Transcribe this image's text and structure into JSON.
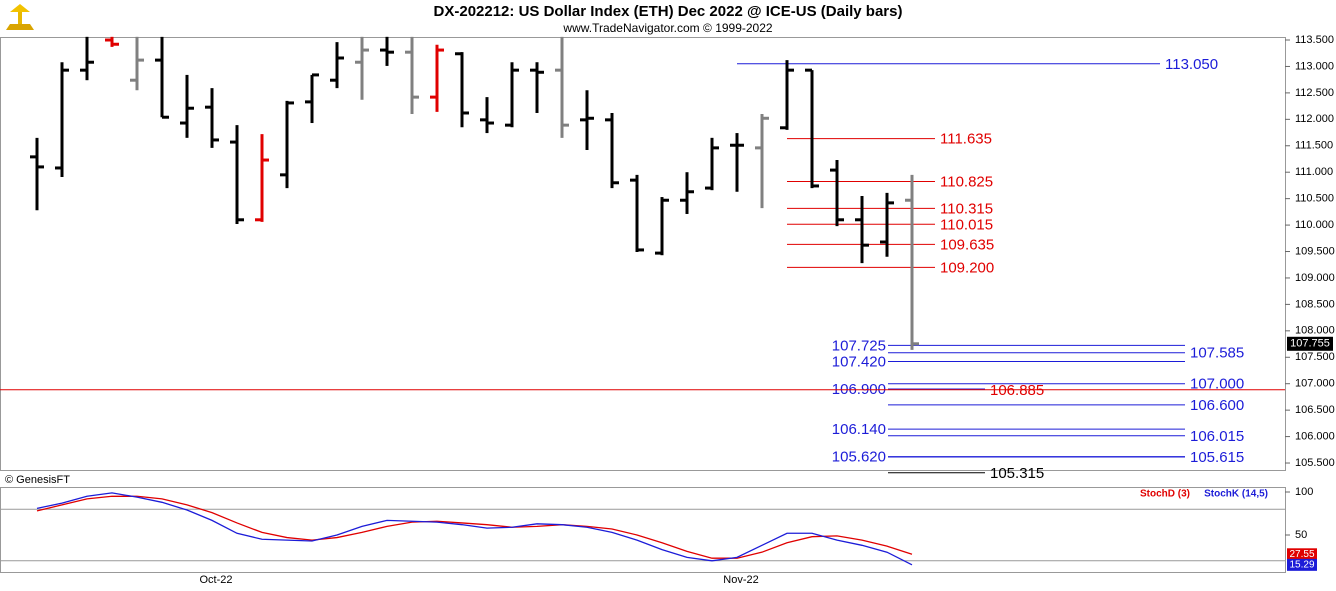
{
  "chart_data": [
    {
      "type": "ohlc",
      "title": "DX-202212:  US Dollar Index (ETH) Dec 2022 @ ICE-US  (Daily bars)",
      "subtitle": "www.TradeNavigator.com © 1999-2022",
      "source": "© GenesisFT",
      "categories": [
        null,
        null,
        null,
        null,
        null,
        null,
        null,
        "Oct-22",
        null,
        null,
        null,
        null,
        null,
        null,
        null,
        null,
        null,
        null,
        null,
        null,
        null,
        null,
        null,
        null,
        null,
        null,
        null,
        null,
        "Nov-22",
        null,
        null,
        null,
        null,
        null,
        null,
        null
      ],
      "open": [
        111.29,
        111.08,
        112.93,
        113.5,
        112.74,
        113.12,
        111.93,
        112.23,
        111.57,
        110.1,
        110.95,
        112.33,
        112.74,
        113.08,
        113.31,
        113.27,
        112.42,
        113.24,
        111.99,
        111.89,
        112.93,
        112.93,
        111.99,
        111.99,
        110.85,
        109.47,
        110.47,
        110.7,
        111.51,
        111.46,
        111.84,
        112.93,
        111.04,
        110.1,
        109.68,
        110.47
      ],
      "high": [
        111.65,
        113.08,
        113.56,
        113.56,
        113.56,
        113.56,
        112.84,
        112.59,
        111.89,
        111.72,
        112.35,
        112.84,
        113.46,
        113.56,
        113.56,
        113.56,
        113.41,
        113.27,
        112.42,
        113.08,
        113.08,
        113.56,
        112.55,
        112.12,
        110.95,
        110.53,
        111.0,
        111.65,
        111.74,
        112.1,
        113.12,
        112.93,
        111.23,
        110.55,
        110.61,
        110.95
      ],
      "low": [
        110.28,
        110.91,
        112.74,
        113.37,
        112.55,
        112.04,
        111.65,
        111.46,
        110.02,
        110.06,
        110.7,
        111.93,
        112.59,
        112.37,
        113.01,
        112.1,
        112.14,
        111.85,
        111.74,
        111.85,
        112.12,
        111.65,
        111.42,
        110.7,
        109.49,
        109.43,
        110.21,
        110.66,
        110.63,
        110.32,
        111.8,
        110.7,
        109.98,
        109.28,
        109.4,
        107.64
      ],
      "close": [
        111.1,
        112.93,
        113.08,
        113.42,
        113.12,
        112.04,
        112.21,
        111.61,
        110.1,
        111.23,
        112.31,
        112.84,
        113.16,
        113.31,
        113.27,
        112.42,
        113.31,
        112.12,
        111.93,
        112.93,
        112.89,
        111.89,
        112.02,
        110.8,
        109.53,
        110.47,
        110.63,
        111.46,
        111.51,
        112.02,
        112.93,
        110.74,
        110.1,
        109.62,
        110.42,
        107.755
      ],
      "bar_colors": [
        "#000000",
        "#000000",
        "#000000",
        "#e00000",
        "#808080",
        "#000000",
        "#000000",
        "#000000",
        "#000000",
        "#e00000",
        "#000000",
        "#000000",
        "#000000",
        "#808080",
        "#000000",
        "#808080",
        "#e00000",
        "#000000",
        "#000000",
        "#000000",
        "#000000",
        "#808080",
        "#000000",
        "#000000",
        "#000000",
        "#000000",
        "#000000",
        "#000000",
        "#000000",
        "#808080",
        "#000000",
        "#000000",
        "#000000",
        "#000000",
        "#000000",
        "#808080"
      ],
      "ylim": [
        105.368,
        113.557
      ],
      "yticks": [
        {
          "value": 105.5,
          "label": "105.500"
        },
        {
          "value": 106,
          "label": "106.000"
        },
        {
          "value": 106.5,
          "label": "106.500"
        },
        {
          "value": 107,
          "label": "107.000"
        },
        {
          "value": 107.5,
          "label": "107.500"
        },
        {
          "value": 108,
          "label": "108.000"
        },
        {
          "value": 108.5,
          "label": "108.500"
        },
        {
          "value": 109,
          "label": "109.000"
        },
        {
          "value": 109.5,
          "label": "109.500"
        },
        {
          "value": 110,
          "label": "110.000"
        },
        {
          "value": 110.5,
          "label": "110.500"
        },
        {
          "value": 111,
          "label": "111.000"
        },
        {
          "value": 111.5,
          "label": "111.500"
        },
        {
          "value": 112,
          "label": "112.000"
        },
        {
          "value": 112.5,
          "label": "112.500"
        },
        {
          "value": 113,
          "label": "113.000"
        },
        {
          "value": 113.5,
          "label": "113.500"
        }
      ],
      "levels": [
        {
          "value": 113.05,
          "label": "113.050",
          "color": "#1c1cd8"
        },
        {
          "value": 111.635,
          "label": "111.635",
          "color": "#e00000"
        },
        {
          "value": 110.825,
          "label": "110.825",
          "color": "#e00000"
        },
        {
          "value": 110.315,
          "label": "110.315",
          "color": "#e00000"
        },
        {
          "value": 110.015,
          "label": "110.015",
          "color": "#e00000"
        },
        {
          "value": 109.635,
          "label": "109.635",
          "color": "#e00000"
        },
        {
          "value": 109.2,
          "label": "109.200",
          "color": "#e00000"
        },
        {
          "value": 107.725,
          "label": "107.725",
          "color": "#1c1cd8"
        },
        {
          "value": 107.585,
          "label": "107.585",
          "color": "#1c1cd8"
        },
        {
          "value": 107.42,
          "label": "107.420",
          "color": "#1c1cd8"
        },
        {
          "value": 107,
          "label": "107.000",
          "color": "#1c1cd8"
        },
        {
          "value": 106.9,
          "label": "106.900",
          "color": "#1c1cd8"
        },
        {
          "value": 106.885,
          "label": "106.885",
          "color": "#e00000"
        },
        {
          "value": 106.6,
          "label": "106.600",
          "color": "#1c1cd8"
        },
        {
          "value": 106.14,
          "label": "106.140",
          "color": "#1c1cd8"
        },
        {
          "value": 106.015,
          "label": "106.015",
          "color": "#1c1cd8"
        },
        {
          "value": 105.62,
          "label": "105.620",
          "color": "#1c1cd8"
        },
        {
          "value": 105.615,
          "label": "105.615",
          "color": "#1c1cd8"
        },
        {
          "value": 105.315,
          "label": "105.315",
          "color": "#000000"
        }
      ]
    },
    {
      "type": "line",
      "series": [
        {
          "name": "StochD (3)",
          "color": "#e00000",
          "values": [
            78,
            85,
            92,
            95,
            95,
            92,
            85,
            76,
            64,
            53,
            47,
            44,
            47,
            53,
            60,
            65,
            66,
            64,
            62,
            59,
            60,
            62,
            60,
            57,
            50,
            41,
            31,
            23,
            23,
            30,
            41,
            48,
            49,
            44,
            37,
            27.55
          ]
        },
        {
          "name": "StochK (14,5)",
          "color": "#1c1cd8",
          "values": [
            81,
            87,
            95,
            99,
            94,
            88,
            79,
            67,
            52,
            45,
            44,
            43,
            50,
            60,
            67,
            66,
            65,
            62,
            58,
            59,
            63,
            62,
            59,
            53,
            44,
            33,
            24,
            20,
            24,
            38,
            52,
            52,
            44,
            38,
            30,
            15.29
          ]
        }
      ],
      "ylim": [
        5.8,
        105.8
      ],
      "yticks": [
        50,
        100
      ],
      "levels": [
        20,
        80
      ]
    }
  ]
}
